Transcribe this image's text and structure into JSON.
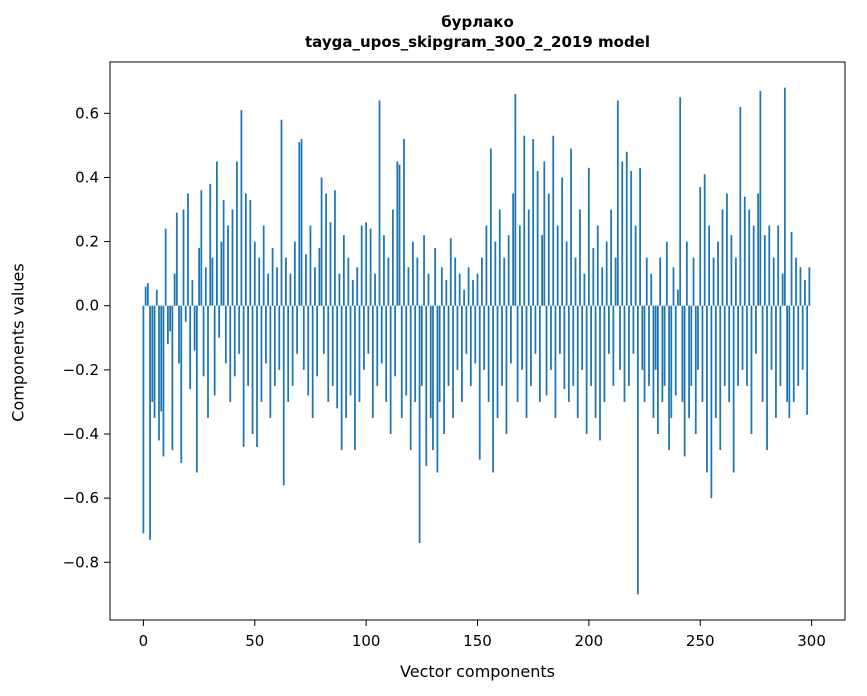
{
  "figure": {
    "title": "бурлако",
    "subtitle": "tayga_upos_skipgram_300_2_2019 model",
    "xlabel": "Vector components",
    "ylabel": "Components values"
  },
  "chart_data": {
    "type": "bar",
    "title": "бурлако",
    "subtitle": "tayga_upos_skipgram_300_2_2019 model",
    "xlabel": "Vector components",
    "ylabel": "Components values",
    "bar_color": "#1f77b4",
    "grid": false,
    "legend": "none",
    "xlim": [
      -15,
      315
    ],
    "ylim": [
      -0.98,
      0.76
    ],
    "xticks": [
      0,
      50,
      100,
      150,
      200,
      250,
      300
    ],
    "yticks": [
      0.6,
      0.4,
      0.2,
      0.0,
      -0.2,
      -0.4,
      -0.6,
      -0.8
    ],
    "values": [
      -0.71,
      0.06,
      0.07,
      -0.73,
      -0.3,
      -0.35,
      0.05,
      -0.42,
      -0.33,
      -0.47,
      0.24,
      -0.12,
      -0.08,
      -0.45,
      0.1,
      0.29,
      -0.18,
      -0.49,
      0.3,
      -0.05,
      0.35,
      -0.26,
      0.08,
      -0.14,
      -0.52,
      0.18,
      0.36,
      -0.22,
      0.12,
      -0.35,
      0.38,
      0.15,
      -0.28,
      0.45,
      -0.1,
      0.2,
      0.33,
      -0.18,
      0.25,
      -0.3,
      0.3,
      -0.22,
      0.45,
      -0.15,
      0.61,
      -0.44,
      0.35,
      -0.25,
      0.33,
      -0.4,
      0.2,
      -0.44,
      0.15,
      -0.3,
      0.25,
      -0.18,
      0.1,
      -0.35,
      0.18,
      -0.25,
      0.12,
      -0.2,
      0.58,
      -0.56,
      0.15,
      -0.3,
      0.1,
      -0.25,
      0.2,
      -0.15,
      0.51,
      0.52,
      -0.2,
      0.16,
      -0.28,
      0.25,
      -0.35,
      0.12,
      -0.22,
      0.18,
      0.4,
      -0.15,
      0.35,
      -0.3,
      0.26,
      -0.25,
      0.36,
      -0.32,
      0.1,
      -0.45,
      0.22,
      -0.35,
      0.15,
      -0.28,
      0.08,
      -0.45,
      0.12,
      -0.3,
      0.25,
      -0.2,
      0.26,
      -0.15,
      0.24,
      -0.35,
      0.1,
      -0.25,
      0.64,
      -0.18,
      0.22,
      -0.3,
      0.15,
      -0.4,
      0.3,
      -0.22,
      0.45,
      0.44,
      -0.35,
      0.52,
      -0.28,
      0.12,
      -0.45,
      0.2,
      -0.3,
      0.15,
      -0.74,
      -0.25,
      0.22,
      -0.5,
      0.1,
      -0.35,
      -0.45,
      0.18,
      -0.52,
      -0.3,
      0.12,
      -0.4,
      0.08,
      -0.25,
      0.21,
      -0.35,
      0.15,
      -0.2,
      0.1,
      -0.3,
      0.05,
      -0.15,
      0.12,
      -0.25,
      0.08,
      -0.18,
      0.1,
      -0.48,
      0.15,
      -0.2,
      0.25,
      -0.3,
      0.49,
      -0.52,
      0.2,
      -0.35,
      0.3,
      -0.25,
      0.15,
      -0.4,
      0.22,
      -0.18,
      0.35,
      0.66,
      -0.3,
      0.25,
      -0.2,
      0.53,
      -0.35,
      0.3,
      -0.25,
      0.52,
      -0.15,
      0.42,
      -0.3,
      0.22,
      0.45,
      -0.28,
      0.35,
      -0.2,
      0.53,
      -0.35,
      0.25,
      -0.15,
      0.4,
      -0.26,
      0.2,
      -0.3,
      0.49,
      -0.25,
      0.15,
      -0.35,
      0.3,
      -0.2,
      0.1,
      -0.4,
      0.43,
      -0.25,
      0.18,
      -0.35,
      0.25,
      -0.42,
      0.12,
      -0.3,
      0.2,
      -0.15,
      0.3,
      -0.25,
      0.15,
      0.64,
      -0.2,
      0.45,
      -0.3,
      0.48,
      -0.25,
      0.42,
      -0.15,
      0.25,
      -0.9,
      0.43,
      -0.2,
      -0.3,
      0.15,
      -0.25,
      0.1,
      -0.35,
      -0.2,
      -0.4,
      0.15,
      -0.3,
      -0.25,
      0.2,
      -0.45,
      -0.35,
      0.12,
      -0.28,
      0.05,
      0.65,
      -0.3,
      -0.47,
      0.2,
      -0.35,
      -0.25,
      0.15,
      -0.4,
      -0.2,
      0.37,
      -0.3,
      0.41,
      -0.52,
      0.25,
      -0.6,
      0.15,
      -0.35,
      0.2,
      -0.45,
      0.3,
      -0.25,
      0.35,
      -0.3,
      0.22,
      -0.52,
      0.15,
      -0.25,
      0.62,
      -0.2,
      0.34,
      -0.25,
      0.3,
      -0.4,
      0.25,
      -0.15,
      0.35,
      0.67,
      -0.3,
      0.22,
      -0.45,
      0.25,
      -0.2,
      0.15,
      -0.35,
      0.25,
      -0.25,
      0.1,
      0.68,
      -0.3,
      -0.35,
      0.23,
      -0.3,
      0.15,
      -0.25,
      0.12,
      -0.2,
      0.08,
      -0.34,
      0.12
    ]
  }
}
